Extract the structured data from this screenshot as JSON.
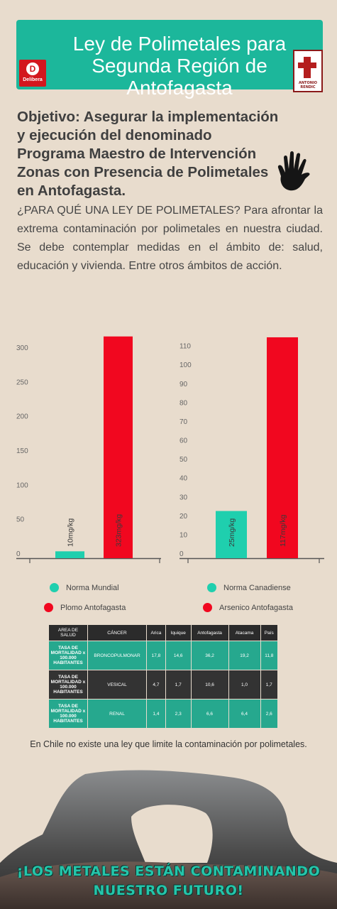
{
  "header": {
    "title": "Ley de Polimetales para Segunda Región de Antofagasta",
    "left_logo_letter": "D",
    "left_logo_text": "Delibera",
    "right_logo_text": "ANTONIO RENDIC"
  },
  "objective": "Objetivo: Asegurar la implementación y ejecución del denominado Programa Maestro de Intervención Zonas con Presencia de Polimetales en Antofagasta.",
  "intro": "¿PARA QUÉ UNA LEY DE POLIMETALES? Para afrontar la extrema contaminación por polimetales en nuestra ciudad. Se debe contemplar medidas en el ámbito de: salud, educación y vivienda. Entre otros ámbitos de acción.",
  "colors": {
    "teal": "#1fcfae",
    "red": "#f1071f",
    "banner": "#1cb79b"
  },
  "chart_data": [
    {
      "type": "bar",
      "categories": [
        "Norma Mundial",
        "Plomo Antofagasta"
      ],
      "values": [
        10,
        323
      ],
      "data_labels": [
        "10mg/kg",
        "323mg/kg"
      ],
      "colors": [
        "#1fcfae",
        "#f1071f"
      ],
      "yticks": [
        0,
        50,
        100,
        150,
        200,
        250,
        300
      ],
      "ylim": [
        0,
        330
      ],
      "grid": false,
      "legend": "bottom"
    },
    {
      "type": "bar",
      "categories": [
        "Norma Canadiense",
        "Arsenico Antofagasta"
      ],
      "values": [
        25,
        117
      ],
      "data_labels": [
        "25mg/kg",
        "117mg/kg"
      ],
      "colors": [
        "#1fcfae",
        "#f1071f"
      ],
      "yticks": [
        0,
        10,
        20,
        30,
        40,
        50,
        60,
        70,
        80,
        90,
        100,
        110
      ],
      "ylim": [
        0,
        120
      ],
      "grid": false,
      "legend": "bottom"
    }
  ],
  "table": {
    "headers": [
      "AREA DE SALUD",
      "CÁNCER",
      "Arica",
      "Iquique",
      "Antofagasta",
      "Atacama",
      "País"
    ],
    "rows": [
      [
        "TASA DE MORTALIDAD x 100.000 HABITANTES",
        "BRONCOPULMONAR",
        "17,8",
        "14,6",
        "36,2",
        "19,2",
        "11,8"
      ],
      [
        "TASA DE MORTALIDAD x 100.000 HABITANTES",
        "VESICAL",
        "4,7",
        "1,7",
        "10,6",
        "1,0",
        "1,7"
      ],
      [
        "TASA DE MORTALIDAD x 100.000 HABITANTES",
        "RENAL",
        "1,4",
        "2,3",
        "6,6",
        "6,4",
        "2,6"
      ]
    ]
  },
  "note": "En Chile no existe una ley que limite la contaminación por polimetales.",
  "slogan_line1": "¡LOS METALES ESTÁN CONTAMINANDO",
  "slogan_line2": "NUESTRO FUTURO!"
}
